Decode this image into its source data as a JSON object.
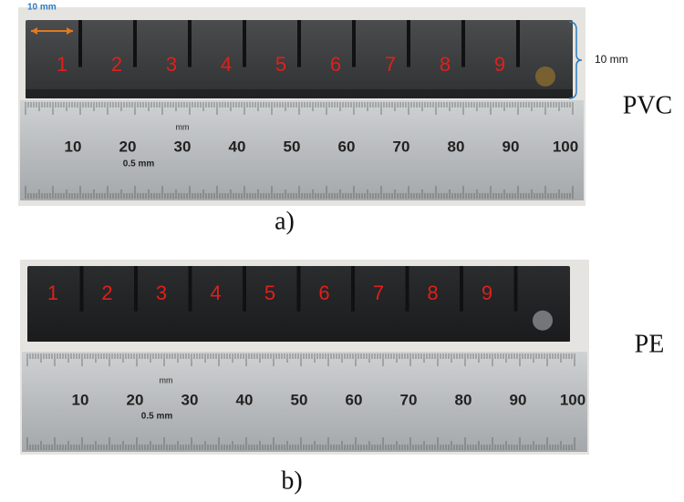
{
  "panels": [
    {
      "caption": "a)",
      "material": "PVC",
      "width_note": "10 mm",
      "height_note": "10 mm",
      "segments": [
        "1",
        "2",
        "3",
        "4",
        "5",
        "6",
        "7",
        "8",
        "9"
      ],
      "ruler_numbers": [
        "10",
        "20",
        "30",
        "40",
        "50",
        "60",
        "70",
        "80",
        "90",
        "100"
      ],
      "ruler_unit": "mm",
      "ruler_subunit": "0.5 mm"
    },
    {
      "caption": "b)",
      "material": "PE",
      "segments": [
        "1",
        "2",
        "3",
        "4",
        "5",
        "6",
        "7",
        "8",
        "9"
      ],
      "ruler_numbers": [
        "10",
        "20",
        "30",
        "40",
        "50",
        "60",
        "70",
        "80",
        "90",
        "100"
      ],
      "ruler_unit": "mm",
      "ruler_subunit": "0.5 mm"
    }
  ]
}
